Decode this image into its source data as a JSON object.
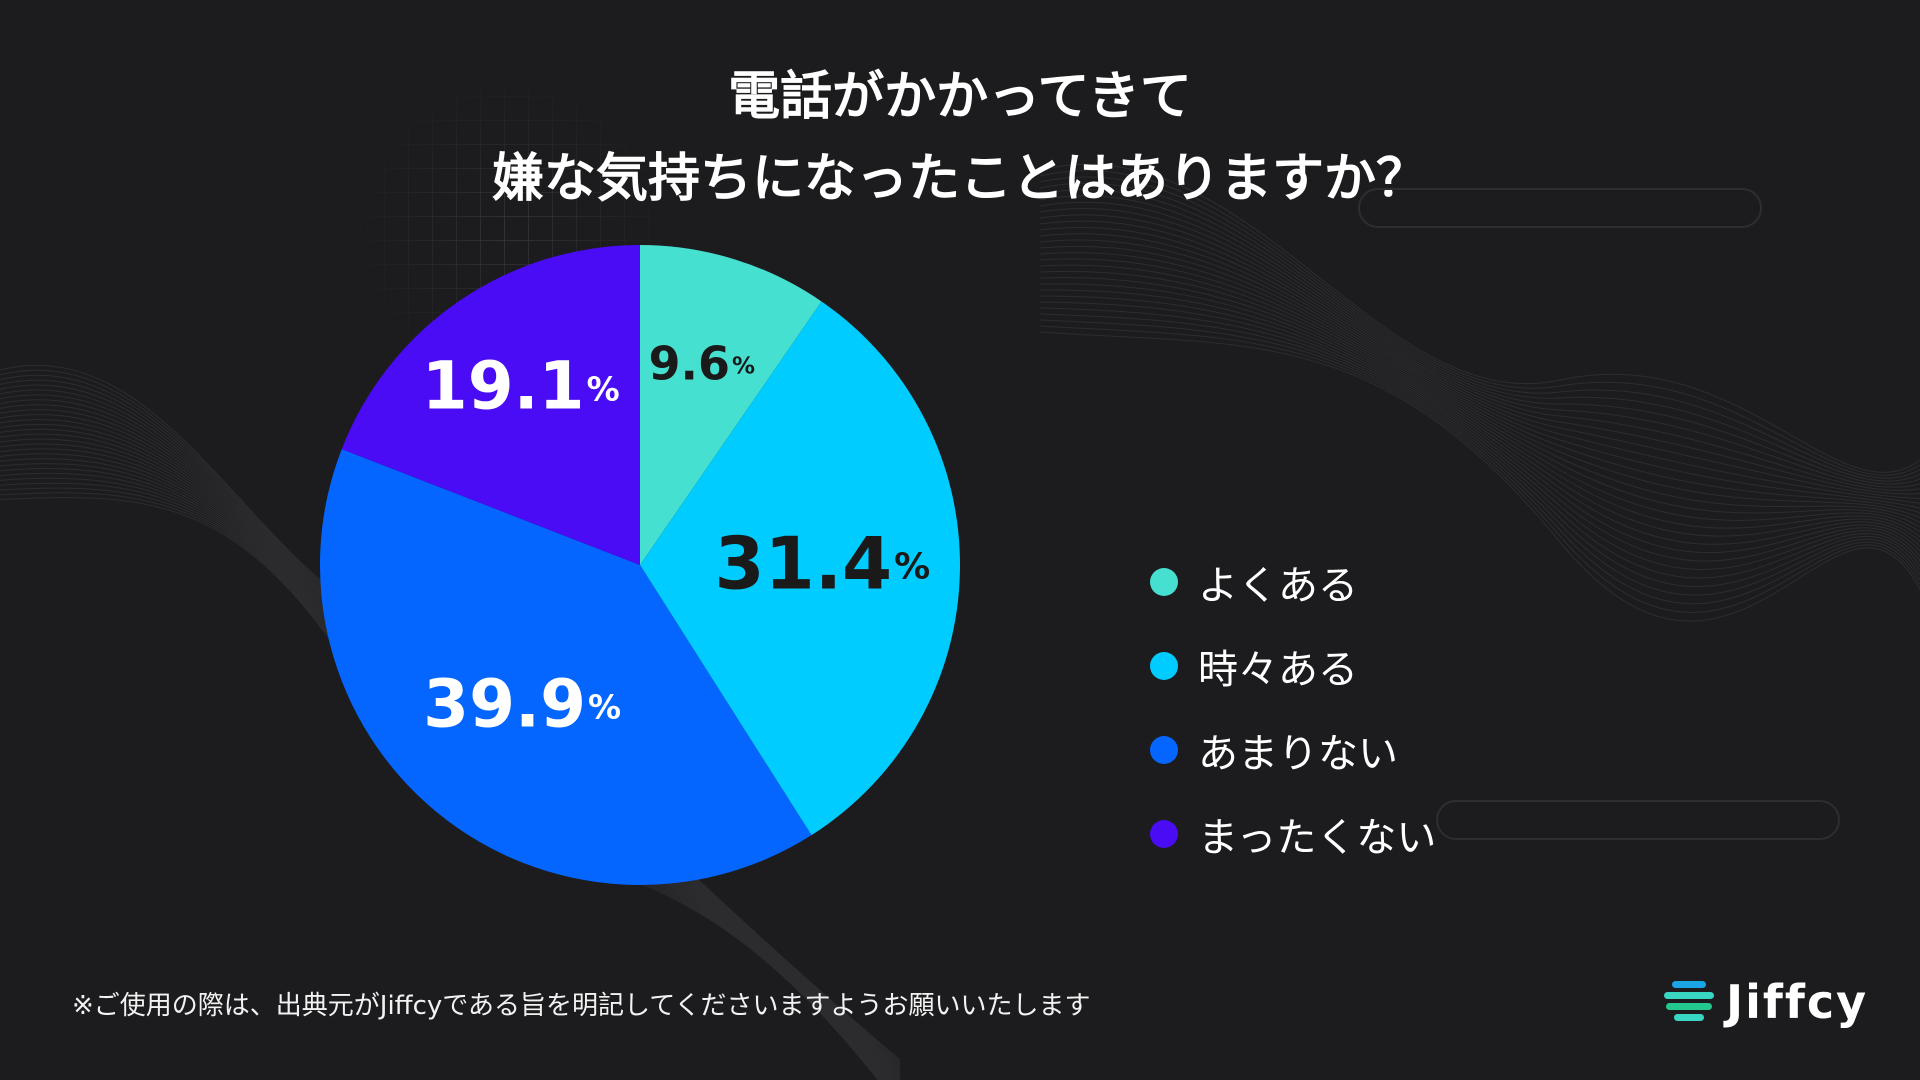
{
  "title_lines": [
    "電話がかかってきて",
    "嫌な気持ちになったことはありますか？"
  ],
  "chart_data": {
    "type": "pie",
    "title": "電話がかかってきて 嫌な気持ちになったことはありますか？",
    "unit": "%",
    "categories": [
      "よくある",
      "時々ある",
      "あまりない",
      "まったくない"
    ],
    "values": [
      9.6,
      31.4,
      39.9,
      19.1
    ],
    "labels": [
      "9.6",
      "31.4",
      "39.9",
      "19.1"
    ],
    "colors": [
      "#46e0d0",
      "#00ccff",
      "#0566ff",
      "#4a0bf5"
    ],
    "label_colors": [
      "#1a1a1a",
      "#1a1a1a",
      "#ffffff",
      "#ffffff"
    ],
    "legend_position": "right"
  },
  "footnote": "※ご使用の際は、出典元がJiffcyである旨を明記してくださいますようお願いいたします",
  "brand": {
    "name": "Jiffcy",
    "colors": [
      "#3ad6c4",
      "#1aa5e6",
      "#22c88e"
    ]
  }
}
